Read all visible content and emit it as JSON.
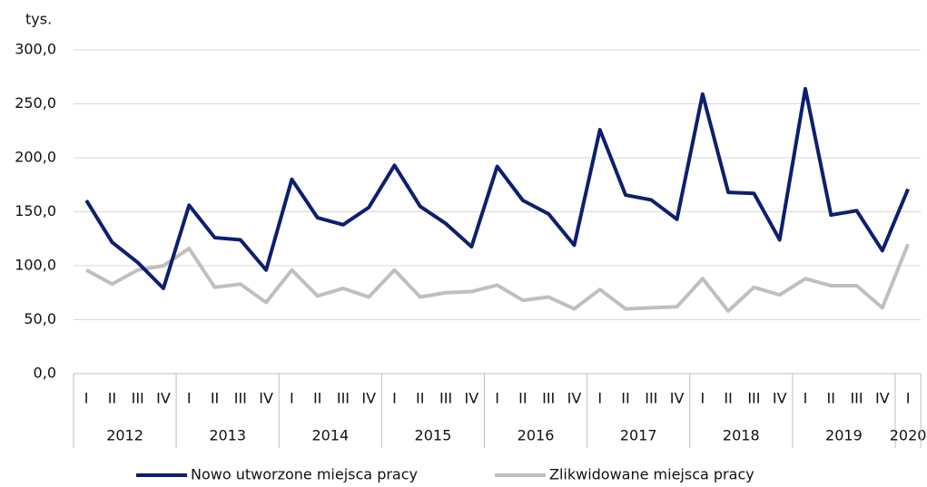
{
  "chart_data": {
    "type": "line",
    "y_unit_label": "tys.",
    "categories": [
      "I",
      "II",
      "III",
      "IV",
      "I",
      "II",
      "III",
      "IV",
      "I",
      "II",
      "III",
      "IV",
      "I",
      "II",
      "III",
      "IV",
      "I",
      "II",
      "III",
      "IV",
      "I",
      "II",
      "III",
      "IV",
      "I",
      "II",
      "III",
      "IV",
      "I",
      "II",
      "III",
      "IV",
      "I"
    ],
    "years": [
      "2012",
      "2013",
      "2014",
      "2015",
      "2016",
      "2017",
      "2018",
      "2019",
      "2020"
    ],
    "series": [
      {
        "name": "Nowo utworzone miejsca pracy",
        "color": "#0d1f6e",
        "values": [
          160.5,
          121.8,
          103,
          79,
          156,
          126,
          124,
          96,
          180,
          144.5,
          138,
          154,
          193,
          155,
          139,
          117.6,
          192,
          160.5,
          148,
          119,
          226,
          165.5,
          161,
          143,
          259,
          168,
          167,
          124,
          264,
          147,
          151,
          114,
          171
        ]
      },
      {
        "name": "Zlikwidowane miejsca pracy",
        "color": "#bfbfbf",
        "values": [
          96,
          83,
          96,
          100,
          116,
          80,
          83,
          66,
          96,
          72,
          79,
          71,
          96,
          71,
          75,
          76,
          82,
          68,
          71,
          60,
          78,
          60,
          61,
          62,
          88,
          58,
          80,
          73,
          88,
          81.5,
          81.5,
          61,
          120
        ]
      }
    ],
    "ylim": [
      0,
      300
    ],
    "yticks": [
      {
        "value": 0,
        "label": "0,0"
      },
      {
        "value": 50,
        "label": "50,0"
      },
      {
        "value": 100,
        "label": "100,0"
      },
      {
        "value": 150,
        "label": "150,0"
      },
      {
        "value": 200,
        "label": "200,0"
      },
      {
        "value": 250,
        "label": "250,0"
      },
      {
        "value": 300,
        "label": "300,0"
      }
    ],
    "grid": true,
    "legend": "bottom"
  }
}
